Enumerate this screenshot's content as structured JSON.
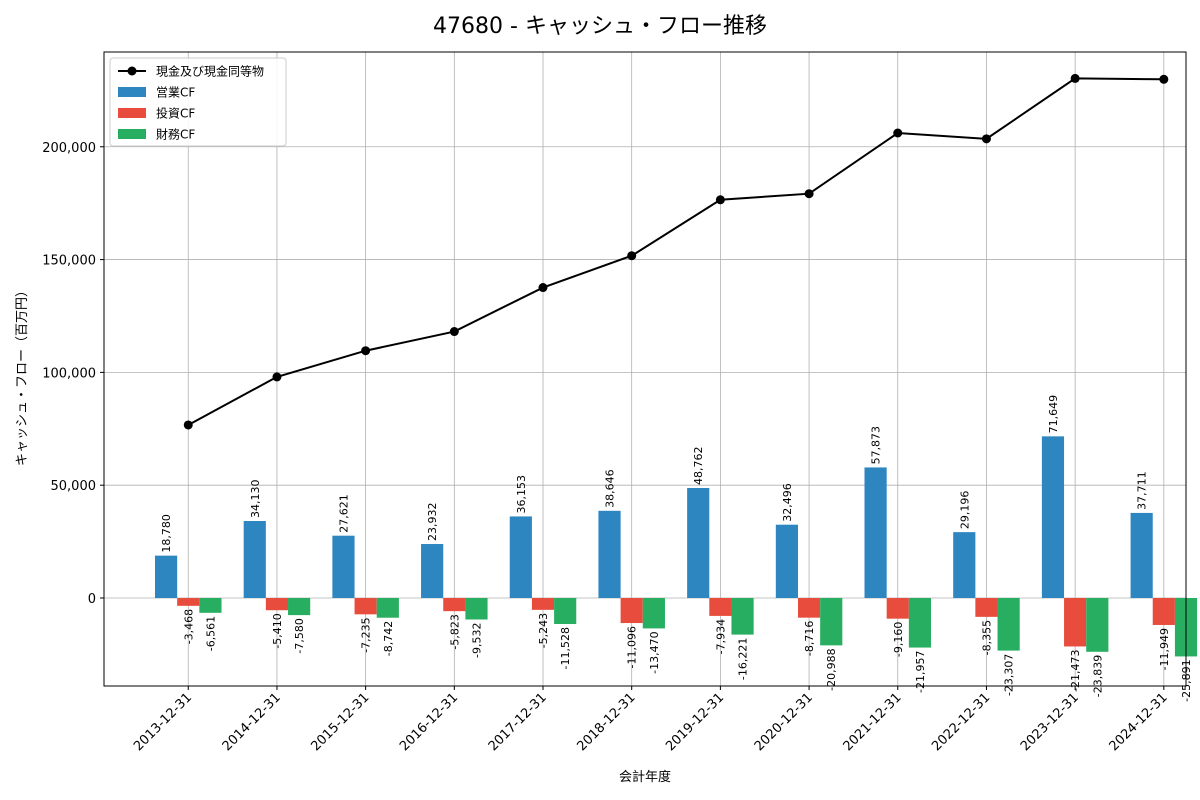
{
  "chart_data": {
    "type": "bar",
    "title": "47680 - キャッシュ・フロー推移",
    "xlabel": "会計年度",
    "ylabel": "キャッシュ・フロー（百万円）",
    "ylim": [
      -39000,
      242000
    ],
    "yticks": [
      0,
      50000,
      100000,
      150000,
      200000
    ],
    "ytick_labels": [
      "0",
      "50,000",
      "100,000",
      "150,000",
      "200,000"
    ],
    "grid": true,
    "legend_position": "top-left",
    "categories": [
      "2013-12-31",
      "2014-12-31",
      "2015-12-31",
      "2016-12-31",
      "2017-12-31",
      "2018-12-31",
      "2019-12-31",
      "2020-12-31",
      "2021-12-31",
      "2022-12-31",
      "2023-12-31",
      "2024-12-31"
    ],
    "series": [
      {
        "name": "営業CF",
        "kind": "bar",
        "color": "#2e86c1",
        "values": [
          18780,
          34130,
          27621,
          23932,
          36153,
          38646,
          48762,
          32496,
          57873,
          29196,
          71649,
          37711
        ],
        "labels": [
          "18,780",
          "34,130",
          "27,621",
          "23,932",
          "36,153",
          "38,646",
          "48,762",
          "32,496",
          "57,873",
          "29,196",
          "71,649",
          "37,711"
        ]
      },
      {
        "name": "投資CF",
        "kind": "bar",
        "color": "#e74c3c",
        "values": [
          -3468,
          -5410,
          -7235,
          -5823,
          -5243,
          -11096,
          -7934,
          -8716,
          -9160,
          -8355,
          -21473,
          -11949
        ],
        "labels": [
          "-3,468",
          "-5,410",
          "-7,235",
          "-5,823",
          "-5,243",
          "-11,096",
          "-7,934",
          "-8,716",
          "-9,160",
          "-8,355",
          "-21,473",
          "-11,949"
        ]
      },
      {
        "name": "財務CF",
        "kind": "bar",
        "color": "#27ae60",
        "values": [
          -6561,
          -7580,
          -8742,
          -9532,
          -11528,
          -13470,
          -16221,
          -20988,
          -21957,
          -23307,
          -23839,
          -25891
        ],
        "labels": [
          "-6,561",
          "-7,580",
          "-8,742",
          "-9,532",
          "-11,528",
          "-13,470",
          "-16,221",
          "-20,988",
          "-21,957",
          "-23,307",
          "-23,839",
          "-25,891"
        ]
      },
      {
        "name": "現金及び現金同等物",
        "kind": "line",
        "color": "#000000",
        "values": [
          76700,
          98000,
          109600,
          118100,
          137600,
          151700,
          176500,
          179200,
          206100,
          203500,
          230300,
          229900
        ]
      }
    ]
  }
}
